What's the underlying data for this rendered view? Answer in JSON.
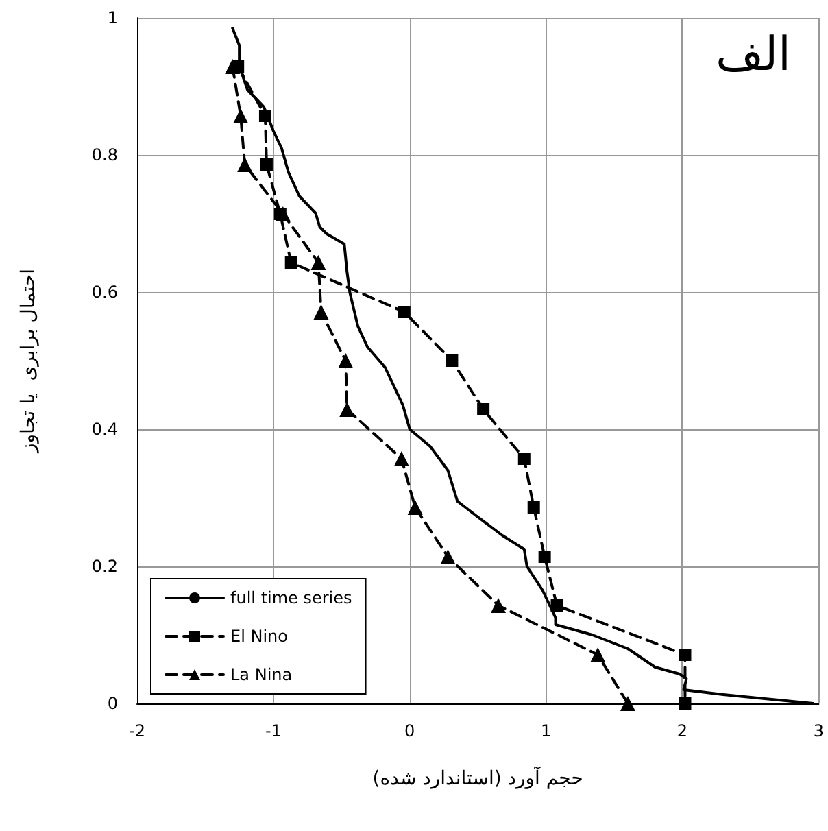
{
  "chart_data": {
    "type": "line",
    "title": "الف",
    "xlabel": "حجم آورد (استاندارد شده)",
    "ylabel": "احتمال برابری  یا تجاوز",
    "xlim": [
      -2,
      3
    ],
    "xticks": [
      -2,
      -1,
      0,
      1,
      2,
      3
    ],
    "ylim": [
      0,
      1
    ],
    "yticks": [
      0,
      0.2,
      0.4,
      0.6,
      0.8,
      1
    ],
    "grid": true,
    "legend": "bottom left",
    "series": [
      {
        "name": "full time series",
        "color": "#000000",
        "marker": "none",
        "line_style": "solid",
        "x": [
          -1.3,
          -1.25,
          -1.25,
          -1.19,
          -1.07,
          -1.0,
          -0.94,
          -0.89,
          -0.81,
          -0.69,
          -0.66,
          -0.61,
          -0.48,
          -0.46,
          -0.44,
          -0.41,
          -0.38,
          -0.31,
          -0.18,
          -0.05,
          0.0,
          0.15,
          0.28,
          0.35,
          0.48,
          0.68,
          0.84,
          0.86,
          0.975,
          1.07,
          1.07,
          1.34,
          1.6,
          1.8,
          1.98,
          2.03,
          2.01,
          2.3,
          2.96
        ],
        "values": [
          0.985,
          0.96,
          0.93,
          0.895,
          0.87,
          0.835,
          0.81,
          0.775,
          0.74,
          0.715,
          0.695,
          0.685,
          0.67,
          0.63,
          0.6,
          0.575,
          0.55,
          0.52,
          0.49,
          0.435,
          0.4,
          0.375,
          0.34,
          0.295,
          0.275,
          0.245,
          0.225,
          0.2,
          0.165,
          0.125,
          0.115,
          0.1,
          0.08,
          0.053,
          0.043,
          0.036,
          0.02,
          0.013,
          0.0
        ]
      },
      {
        "name": "El Nino",
        "color": "#000000",
        "marker": "square",
        "line_style": "dashed",
        "x": [
          -1.26,
          -1.06,
          -1.05,
          -0.95,
          -0.87,
          -0.04,
          0.31,
          0.54,
          0.84,
          0.91,
          0.99,
          1.08,
          2.02,
          2.02
        ],
        "values": [
          0.929,
          0.857,
          0.786,
          0.714,
          0.643,
          0.571,
          0.5,
          0.429,
          0.357,
          0.286,
          0.214,
          0.143,
          0.071,
          0.0
        ]
      },
      {
        "name": "La Nina",
        "color": "#000000",
        "marker": "triangle",
        "line_style": "dashed",
        "x": [
          -1.3,
          -1.24,
          -1.21,
          -0.93,
          -0.67,
          -0.65,
          -0.47,
          -0.46,
          -0.06,
          0.04,
          0.28,
          0.65,
          1.38,
          1.6
        ],
        "values": [
          0.929,
          0.857,
          0.786,
          0.714,
          0.643,
          0.571,
          0.5,
          0.429,
          0.357,
          0.286,
          0.214,
          0.143,
          0.071,
          0.0
        ]
      }
    ]
  }
}
